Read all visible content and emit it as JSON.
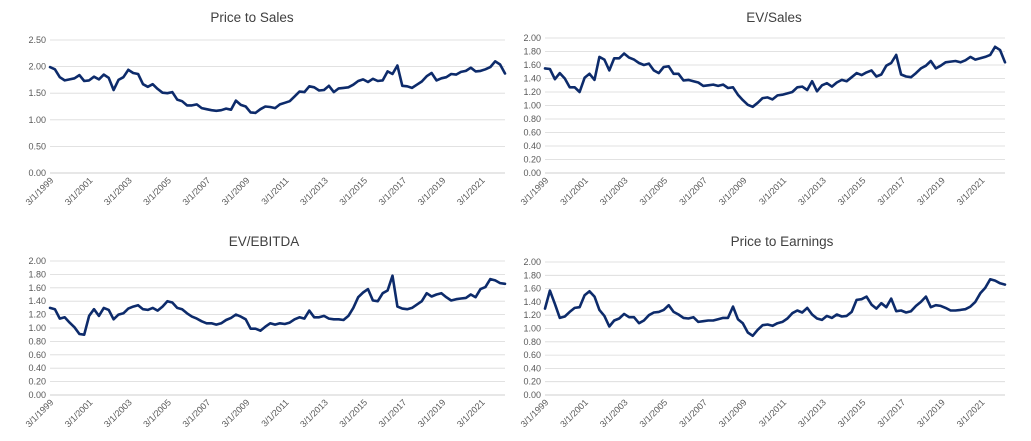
{
  "chart_data": [
    {
      "type": "line",
      "title": "Price to Sales",
      "ylim": [
        0,
        2.5
      ],
      "yticks": [
        "0.00",
        "0.50",
        "1.00",
        "1.50",
        "2.00",
        "2.50"
      ],
      "xticks": [
        "3/1/1999",
        "3/1/2001",
        "3/1/2003",
        "3/1/2005",
        "3/1/2007",
        "3/1/2009",
        "3/1/2011",
        "3/1/2013",
        "3/1/2015",
        "3/1/2017",
        "3/1/2019",
        "3/1/2021"
      ],
      "x_start": 1999.17,
      "x_end": 2022.17,
      "grid": true,
      "series": [
        {
          "color": "#0d2b6b",
          "values": [
            1.99,
            1.95,
            1.8,
            1.74,
            1.76,
            1.78,
            1.84,
            1.73,
            1.74,
            1.81,
            1.76,
            1.85,
            1.79,
            1.56,
            1.75,
            1.8,
            1.94,
            1.88,
            1.86,
            1.67,
            1.62,
            1.67,
            1.58,
            1.51,
            1.5,
            1.52,
            1.38,
            1.35,
            1.27,
            1.27,
            1.29,
            1.22,
            1.2,
            1.18,
            1.17,
            1.18,
            1.21,
            1.19,
            1.36,
            1.28,
            1.25,
            1.14,
            1.13,
            1.2,
            1.25,
            1.24,
            1.22,
            1.29,
            1.32,
            1.35,
            1.44,
            1.53,
            1.52,
            1.63,
            1.61,
            1.55,
            1.56,
            1.64,
            1.52,
            1.59,
            1.6,
            1.61,
            1.66,
            1.73,
            1.76,
            1.71,
            1.77,
            1.73,
            1.74,
            1.91,
            1.86,
            2.02,
            1.64,
            1.63,
            1.6,
            1.66,
            1.72,
            1.82,
            1.88,
            1.74,
            1.78,
            1.8,
            1.86,
            1.85,
            1.9,
            1.92,
            1.98,
            1.91,
            1.92,
            1.95,
            1.99,
            2.1,
            2.04,
            1.87
          ]
        }
      ]
    },
    {
      "type": "line",
      "title": "EV/Sales",
      "ylim": [
        0,
        2.0
      ],
      "yticks": [
        "0.00",
        "0.20",
        "0.40",
        "0.60",
        "0.80",
        "1.00",
        "1.20",
        "1.40",
        "1.60",
        "1.80",
        "2.00"
      ],
      "xticks": [
        "3/1/1999",
        "3/1/2001",
        "3/1/2003",
        "3/1/2005",
        "3/1/2007",
        "3/1/2009",
        "3/1/2011",
        "3/1/2013",
        "3/1/2015",
        "3/1/2017",
        "3/1/2019",
        "3/1/2021"
      ],
      "x_start": 1999.17,
      "x_end": 2022.17,
      "grid": true,
      "series": [
        {
          "color": "#0d2b6b",
          "values": [
            1.55,
            1.54,
            1.39,
            1.48,
            1.4,
            1.27,
            1.27,
            1.2,
            1.41,
            1.47,
            1.38,
            1.72,
            1.68,
            1.52,
            1.7,
            1.7,
            1.77,
            1.71,
            1.68,
            1.63,
            1.6,
            1.62,
            1.52,
            1.48,
            1.57,
            1.58,
            1.47,
            1.47,
            1.37,
            1.38,
            1.36,
            1.34,
            1.29,
            1.3,
            1.31,
            1.29,
            1.31,
            1.26,
            1.27,
            1.16,
            1.08,
            1.01,
            0.98,
            1.04,
            1.11,
            1.12,
            1.09,
            1.15,
            1.16,
            1.18,
            1.2,
            1.27,
            1.28,
            1.23,
            1.36,
            1.21,
            1.3,
            1.33,
            1.28,
            1.34,
            1.38,
            1.36,
            1.42,
            1.48,
            1.45,
            1.49,
            1.52,
            1.43,
            1.46,
            1.59,
            1.63,
            1.75,
            1.46,
            1.43,
            1.42,
            1.48,
            1.55,
            1.59,
            1.66,
            1.55,
            1.59,
            1.64,
            1.65,
            1.66,
            1.64,
            1.67,
            1.72,
            1.68,
            1.7,
            1.72,
            1.75,
            1.87,
            1.82,
            1.64
          ]
        }
      ]
    },
    {
      "type": "line",
      "title": "EV/EBITDA",
      "ylim": [
        0,
        2.0
      ],
      "yticks": [
        "0.00",
        "0.20",
        "0.40",
        "0.60",
        "0.80",
        "1.00",
        "1.20",
        "1.40",
        "1.60",
        "1.80",
        "2.00"
      ],
      "xticks": [
        "3/1/1999",
        "3/1/2001",
        "3/1/2003",
        "3/1/2005",
        "3/1/2007",
        "3/1/2009",
        "3/1/2011",
        "3/1/2013",
        "3/1/2015",
        "3/1/2017",
        "3/1/2019",
        "3/1/2021"
      ],
      "x_start": 1999.17,
      "x_end": 2022.17,
      "grid": true,
      "series": [
        {
          "color": "#0d2b6b",
          "values": [
            1.3,
            1.28,
            1.14,
            1.16,
            1.08,
            1.01,
            0.91,
            0.9,
            1.18,
            1.28,
            1.18,
            1.3,
            1.27,
            1.13,
            1.2,
            1.22,
            1.29,
            1.32,
            1.34,
            1.28,
            1.27,
            1.3,
            1.26,
            1.32,
            1.4,
            1.38,
            1.3,
            1.28,
            1.22,
            1.17,
            1.14,
            1.1,
            1.07,
            1.07,
            1.05,
            1.07,
            1.12,
            1.15,
            1.2,
            1.17,
            1.13,
            0.99,
            0.99,
            0.96,
            1.02,
            1.07,
            1.05,
            1.07,
            1.06,
            1.08,
            1.13,
            1.16,
            1.14,
            1.26,
            1.16,
            1.16,
            1.18,
            1.14,
            1.13,
            1.13,
            1.12,
            1.18,
            1.3,
            1.46,
            1.53,
            1.58,
            1.41,
            1.4,
            1.52,
            1.56,
            1.78,
            1.32,
            1.29,
            1.28,
            1.3,
            1.35,
            1.4,
            1.52,
            1.47,
            1.5,
            1.52,
            1.46,
            1.41,
            1.43,
            1.44,
            1.45,
            1.5,
            1.46,
            1.58,
            1.61,
            1.73,
            1.71,
            1.67,
            1.66
          ]
        }
      ]
    },
    {
      "type": "line",
      "title": "Price to Earnings",
      "ylim": [
        0,
        2.0
      ],
      "yticks": [
        "0.00",
        "0.20",
        "0.40",
        "0.60",
        "0.80",
        "1.00",
        "1.20",
        "1.40",
        "1.60",
        "1.80",
        "2.00"
      ],
      "xticks": [
        "3/1/1999",
        "3/1/2001",
        "3/1/2003",
        "3/1/2005",
        "3/1/2007",
        "3/1/2009",
        "3/1/2011",
        "3/1/2013",
        "3/1/2015",
        "3/1/2017",
        "3/1/2019",
        "3/1/2021"
      ],
      "x_start": 1999.17,
      "x_end": 2022.17,
      "grid": true,
      "series": [
        {
          "color": "#0d2b6b",
          "values": [
            1.3,
            1.57,
            1.37,
            1.16,
            1.18,
            1.25,
            1.31,
            1.32,
            1.5,
            1.56,
            1.48,
            1.28,
            1.19,
            1.03,
            1.12,
            1.15,
            1.22,
            1.17,
            1.17,
            1.08,
            1.12,
            1.2,
            1.24,
            1.25,
            1.28,
            1.35,
            1.25,
            1.21,
            1.16,
            1.15,
            1.17,
            1.1,
            1.11,
            1.12,
            1.12,
            1.14,
            1.16,
            1.16,
            1.33,
            1.14,
            1.08,
            0.94,
            0.89,
            0.98,
            1.05,
            1.06,
            1.04,
            1.08,
            1.1,
            1.15,
            1.23,
            1.27,
            1.24,
            1.31,
            1.21,
            1.15,
            1.13,
            1.19,
            1.16,
            1.21,
            1.18,
            1.19,
            1.25,
            1.43,
            1.44,
            1.48,
            1.36,
            1.3,
            1.38,
            1.32,
            1.45,
            1.26,
            1.27,
            1.24,
            1.26,
            1.34,
            1.4,
            1.48,
            1.32,
            1.35,
            1.34,
            1.31,
            1.27,
            1.27,
            1.28,
            1.29,
            1.33,
            1.4,
            1.53,
            1.61,
            1.74,
            1.72,
            1.68,
            1.66
          ]
        }
      ]
    }
  ]
}
